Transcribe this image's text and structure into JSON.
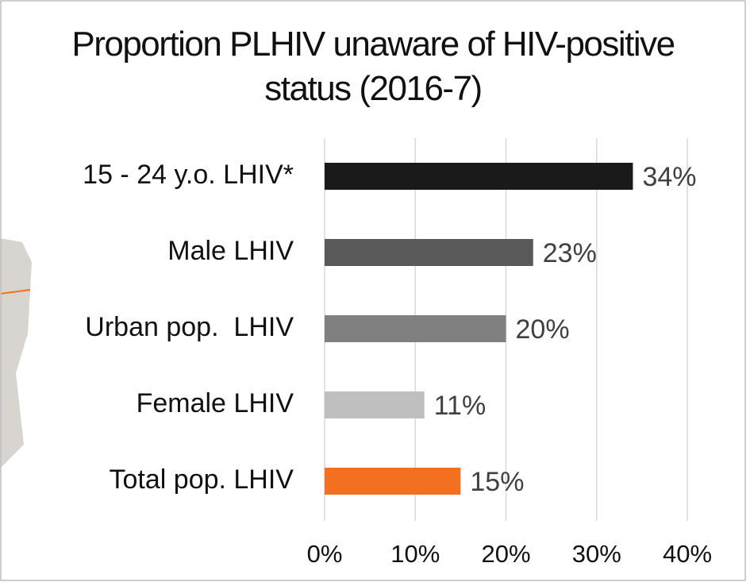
{
  "chart_data": {
    "type": "bar",
    "orientation": "horizontal",
    "title": "Proportion PLHIV unaware of HIV-positive status (2016-7)",
    "categories": [
      "15 - 24 y.o. LHIV*",
      "Male LHIV",
      "Urban pop.  LHIV",
      "Female LHIV",
      "Total pop. LHIV"
    ],
    "values": [
      34,
      23,
      20,
      11,
      15
    ],
    "value_labels": [
      "34%",
      "23%",
      "20%",
      "11%",
      "15%"
    ],
    "colors": [
      "#1a1a1a",
      "#595959",
      "#808080",
      "#bfbfbf",
      "#f37021"
    ],
    "xlim": [
      0,
      40
    ],
    "xticks": [
      {
        "value": 0,
        "label": "0%"
      },
      {
        "value": 10,
        "label": "10%"
      },
      {
        "value": 20,
        "label": "20%"
      },
      {
        "value": 30,
        "label": "30%"
      },
      {
        "value": 40,
        "label": "40%"
      }
    ],
    "grid": true
  }
}
